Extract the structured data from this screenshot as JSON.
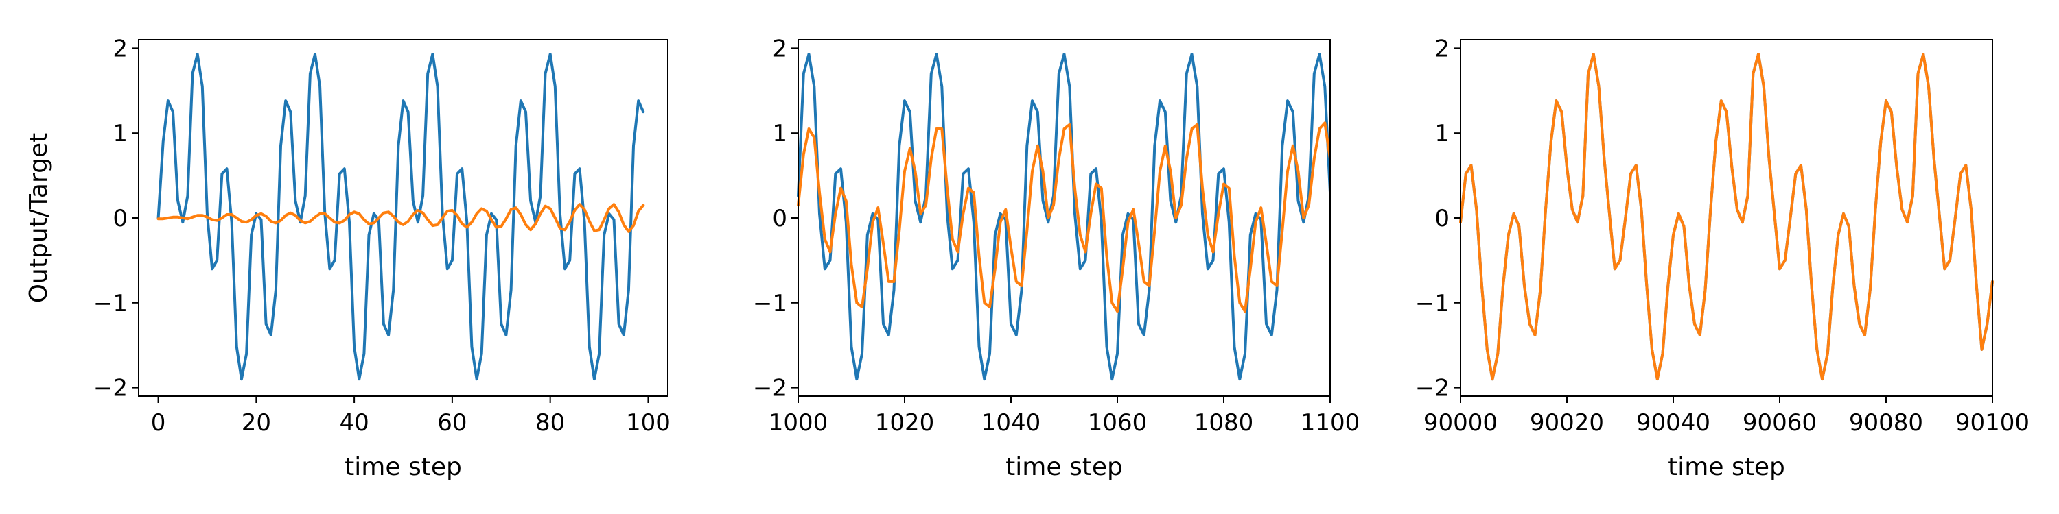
{
  "figure": {
    "ylabel": "Output/Target",
    "xlabel": "time step"
  },
  "chart_data": [
    {
      "type": "line",
      "xlabel": "time step",
      "ylabel": "Output/Target",
      "xlim": [
        -4,
        104
      ],
      "ylim": [
        -2.1,
        2.1
      ],
      "xticks": [
        0,
        20,
        40,
        60,
        80,
        100
      ],
      "xtick_labels": [
        "0",
        "20",
        "40",
        "60",
        "80",
        "100"
      ],
      "yticks": [
        2,
        1,
        0,
        -1,
        -2
      ],
      "ytick_labels": [
        "2",
        "1",
        "0",
        "−1",
        "−2"
      ],
      "colors": [
        "#1f77b4",
        "#ff7f0e"
      ],
      "x_start": 0,
      "x_end": 99,
      "series": [
        {
          "color": "#1f77b4",
          "values": [
            0.0,
            0.9,
            1.38,
            1.25,
            0.2,
            -0.05,
            0.26,
            1.7,
            1.93,
            1.55,
            0.05,
            -0.6,
            -0.5,
            0.52,
            0.58,
            -0.05,
            -1.52,
            -1.9,
            -1.6,
            -0.2,
            0.05,
            -0.02,
            -1.25,
            -1.38,
            -0.85,
            0.85,
            1.38,
            1.25,
            0.2,
            -0.05,
            0.26,
            1.7,
            1.93,
            1.55,
            0.05,
            -0.6,
            -0.5,
            0.52,
            0.58,
            -0.05,
            -1.52,
            -1.9,
            -1.6,
            -0.2,
            0.05,
            -0.02,
            -1.25,
            -1.38,
            -0.85,
            0.85,
            1.38,
            1.25,
            0.2,
            -0.05,
            0.26,
            1.7,
            1.93,
            1.55,
            0.05,
            -0.6,
            -0.5,
            0.52,
            0.58,
            -0.05,
            -1.52,
            -1.9,
            -1.6,
            -0.2,
            0.05,
            -0.02,
            -1.25,
            -1.38,
            -0.85,
            0.85,
            1.38,
            1.25,
            0.2,
            -0.05,
            0.26,
            1.7,
            1.93,
            1.55,
            0.05,
            -0.6,
            -0.5,
            0.52,
            0.58,
            -0.05,
            -1.52,
            -1.9,
            -1.6,
            -0.2,
            0.05,
            -0.02,
            -1.25,
            -1.38,
            -0.85,
            0.85,
            1.38,
            1.25
          ]
        },
        {
          "color": "#ff7f0e",
          "values": [
            -0.01,
            -0.01,
            0.0,
            0.01,
            0.01,
            0.0,
            -0.01,
            0.01,
            0.03,
            0.03,
            0.01,
            -0.02,
            -0.03,
            0.0,
            0.04,
            0.04,
            0.0,
            -0.04,
            -0.05,
            -0.02,
            0.03,
            0.05,
            0.02,
            -0.04,
            -0.06,
            -0.03,
            0.03,
            0.06,
            0.03,
            -0.03,
            -0.06,
            -0.04,
            0.01,
            0.05,
            0.05,
            0.0,
            -0.05,
            -0.06,
            -0.03,
            0.04,
            0.07,
            0.05,
            -0.02,
            -0.07,
            -0.06,
            0.0,
            0.06,
            0.07,
            0.02,
            -0.05,
            -0.08,
            -0.04,
            0.04,
            0.09,
            0.06,
            -0.02,
            -0.09,
            -0.08,
            0.0,
            0.08,
            0.09,
            0.03,
            -0.07,
            -0.11,
            -0.05,
            0.05,
            0.11,
            0.08,
            -0.02,
            -0.11,
            -0.1,
            -0.01,
            0.1,
            0.12,
            0.04,
            -0.08,
            -0.14,
            -0.07,
            0.05,
            0.14,
            0.11,
            0.0,
            -0.12,
            -0.14,
            -0.04,
            0.09,
            0.16,
            0.1,
            -0.04,
            -0.15,
            -0.14,
            -0.02,
            0.11,
            0.16,
            0.07,
            -0.08,
            -0.16,
            -0.09,
            0.08,
            0.15
          ]
        }
      ]
    },
    {
      "type": "line",
      "xlabel": "time step",
      "ylabel": "",
      "xlim": [
        1000,
        1100
      ],
      "ylim": [
        -2.1,
        2.1
      ],
      "xticks": [
        1000,
        1020,
        1040,
        1060,
        1080,
        1100
      ],
      "xtick_labels": [
        "1000",
        "1020",
        "1040",
        "1060",
        "1080",
        "1100"
      ],
      "yticks": [
        2,
        1,
        0,
        -1,
        -2
      ],
      "ytick_labels": [
        "2",
        "1",
        "0",
        "−1",
        "−2"
      ],
      "colors": [
        "#1f77b4",
        "#ff7f0e"
      ],
      "x_start": 1000,
      "x_end": 1100,
      "series": [
        {
          "color": "#1f77b4",
          "values": [
            0.26,
            1.7,
            1.93,
            1.55,
            0.05,
            -0.6,
            -0.5,
            0.52,
            0.58,
            -0.05,
            -1.52,
            -1.9,
            -1.6,
            -0.2,
            0.05,
            -0.02,
            -1.25,
            -1.38,
            -0.85,
            0.85,
            1.38,
            1.25,
            0.2,
            -0.05,
            0.26,
            1.7,
            1.93,
            1.55,
            0.05,
            -0.6,
            -0.5,
            0.52,
            0.58,
            -0.05,
            -1.52,
            -1.9,
            -1.6,
            -0.2,
            0.05,
            -0.02,
            -1.25,
            -1.38,
            -0.85,
            0.85,
            1.38,
            1.25,
            0.2,
            -0.05,
            0.26,
            1.7,
            1.93,
            1.55,
            0.05,
            -0.6,
            -0.5,
            0.52,
            0.58,
            -0.05,
            -1.52,
            -1.9,
            -1.6,
            -0.2,
            0.05,
            -0.02,
            -1.25,
            -1.38,
            -0.85,
            0.85,
            1.38,
            1.25,
            0.2,
            -0.05,
            0.26,
            1.7,
            1.93,
            1.55,
            0.05,
            -0.6,
            -0.5,
            0.52,
            0.58,
            -0.05,
            -1.52,
            -1.9,
            -1.6,
            -0.2,
            0.05,
            -0.02,
            -1.25,
            -1.38,
            -0.85,
            0.85,
            1.38,
            1.25,
            0.2,
            -0.05,
            0.26,
            1.7,
            1.93,
            1.55,
            0.3
          ]
        },
        {
          "color": "#ff7f0e",
          "values": [
            0.15,
            0.75,
            1.05,
            0.95,
            0.3,
            -0.25,
            -0.4,
            0.05,
            0.35,
            0.2,
            -0.55,
            -1.0,
            -1.05,
            -0.6,
            -0.05,
            0.12,
            -0.3,
            -0.75,
            -0.75,
            -0.15,
            0.55,
            0.82,
            0.55,
            0.05,
            0.15,
            0.7,
            1.05,
            1.05,
            0.35,
            -0.25,
            -0.4,
            0.05,
            0.35,
            0.3,
            -0.45,
            -1.0,
            -1.05,
            -0.6,
            -0.05,
            0.1,
            -0.35,
            -0.75,
            -0.8,
            -0.15,
            0.55,
            0.85,
            0.55,
            0.0,
            0.15,
            0.7,
            1.05,
            1.1,
            0.35,
            -0.2,
            -0.4,
            0.05,
            0.4,
            0.35,
            -0.45,
            -1.0,
            -1.1,
            -0.6,
            -0.05,
            0.1,
            -0.3,
            -0.75,
            -0.8,
            -0.15,
            0.55,
            0.85,
            0.55,
            0.0,
            0.15,
            0.7,
            1.05,
            1.1,
            0.35,
            -0.2,
            -0.4,
            0.05,
            0.4,
            0.35,
            -0.45,
            -1.0,
            -1.1,
            -0.6,
            -0.05,
            0.12,
            -0.3,
            -0.75,
            -0.8,
            -0.15,
            0.55,
            0.85,
            0.55,
            0.0,
            0.15,
            0.7,
            1.05,
            1.12,
            0.7
          ]
        }
      ]
    },
    {
      "type": "line",
      "xlabel": "time step",
      "ylabel": "",
      "xlim": [
        90000,
        90100
      ],
      "ylim": [
        -2.1,
        2.1
      ],
      "xticks": [
        90000,
        90020,
        90040,
        90060,
        90080,
        90100
      ],
      "xtick_labels": [
        "90000",
        "90020",
        "90040",
        "90060",
        "90080",
        "90100"
      ],
      "yticks": [
        2,
        1,
        0,
        -1,
        -2
      ],
      "ytick_labels": [
        "2",
        "1",
        "0",
        "−1",
        "−2"
      ],
      "colors": [
        "#1f77b4",
        "#ff7f0e"
      ],
      "x_start": 90000,
      "x_end": 90100,
      "series": [
        {
          "color": "#1f77b4",
          "values": [
            -0.05,
            0.52,
            0.62,
            0.1,
            -0.8,
            -1.55,
            -1.9,
            -1.6,
            -0.8,
            -0.2,
            0.05,
            -0.1,
            -0.8,
            -1.25,
            -1.38,
            -0.85,
            0.1,
            0.9,
            1.38,
            1.25,
            0.6,
            0.1,
            -0.05,
            0.26,
            1.7,
            1.93,
            1.55,
            0.7,
            0.05,
            -0.6,
            -0.5,
            0.0,
            0.52,
            0.62,
            0.1,
            -0.8,
            -1.55,
            -1.9,
            -1.6,
            -0.8,
            -0.2,
            0.05,
            -0.1,
            -0.8,
            -1.25,
            -1.38,
            -0.85,
            0.1,
            0.9,
            1.38,
            1.25,
            0.6,
            0.1,
            -0.05,
            0.26,
            1.7,
            1.93,
            1.55,
            0.7,
            0.05,
            -0.6,
            -0.5,
            0.0,
            0.52,
            0.62,
            0.1,
            -0.8,
            -1.55,
            -1.9,
            -1.6,
            -0.8,
            -0.2,
            0.05,
            -0.1,
            -0.8,
            -1.25,
            -1.38,
            -0.85,
            0.1,
            0.9,
            1.38,
            1.25,
            0.6,
            0.1,
            -0.05,
            0.26,
            1.7,
            1.93,
            1.55,
            0.7,
            0.05,
            -0.6,
            -0.5,
            0.0,
            0.52,
            0.62,
            0.1,
            -0.8,
            -1.55,
            -1.25,
            -0.75
          ]
        },
        {
          "color": "#ff7f0e",
          "values": [
            -0.05,
            0.52,
            0.62,
            0.1,
            -0.8,
            -1.55,
            -1.9,
            -1.6,
            -0.8,
            -0.2,
            0.05,
            -0.1,
            -0.8,
            -1.25,
            -1.38,
            -0.85,
            0.1,
            0.9,
            1.38,
            1.25,
            0.6,
            0.1,
            -0.05,
            0.26,
            1.7,
            1.93,
            1.55,
            0.7,
            0.05,
            -0.6,
            -0.5,
            0.0,
            0.52,
            0.62,
            0.1,
            -0.8,
            -1.55,
            -1.9,
            -1.6,
            -0.8,
            -0.2,
            0.05,
            -0.1,
            -0.8,
            -1.25,
            -1.38,
            -0.85,
            0.1,
            0.9,
            1.38,
            1.25,
            0.6,
            0.1,
            -0.05,
            0.26,
            1.7,
            1.93,
            1.55,
            0.7,
            0.05,
            -0.6,
            -0.5,
            0.0,
            0.52,
            0.62,
            0.1,
            -0.8,
            -1.55,
            -1.9,
            -1.6,
            -0.8,
            -0.2,
            0.05,
            -0.1,
            -0.8,
            -1.25,
            -1.38,
            -0.85,
            0.1,
            0.9,
            1.38,
            1.25,
            0.6,
            0.1,
            -0.05,
            0.26,
            1.7,
            1.93,
            1.55,
            0.7,
            0.05,
            -0.6,
            -0.5,
            0.0,
            0.52,
            0.62,
            0.1,
            -0.8,
            -1.55,
            -1.25,
            -0.75
          ]
        }
      ]
    }
  ]
}
